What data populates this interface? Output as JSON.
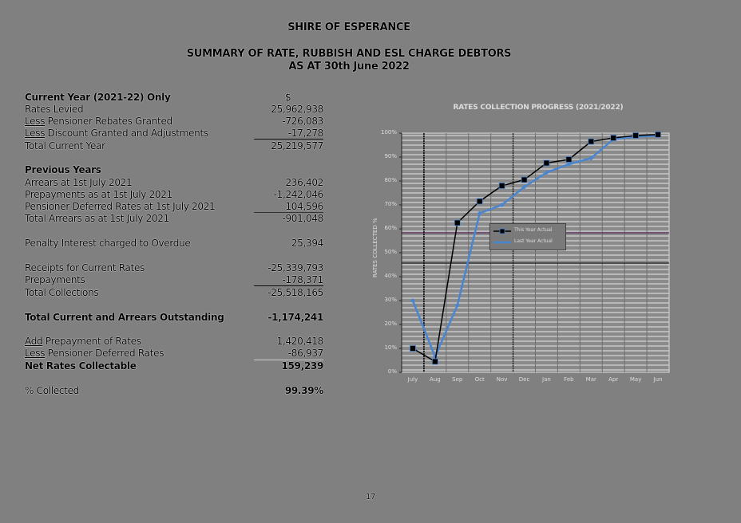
{
  "header": {
    "org": "SHIRE OF ESPERANCE",
    "title": "SUMMARY OF RATE, RUBBISH AND ESL CHARGE DEBTORS",
    "subtitle": "AS AT 30th June 2022"
  },
  "summary": {
    "current_year": {
      "heading": "Current Year (2021-22) Only",
      "currency": "$",
      "rows": [
        {
          "prefix": "",
          "label": "Rates Levied",
          "value": "25,962,938"
        },
        {
          "prefix": "Less",
          "label": " Pensioner Rebates Granted",
          "value": "-726,083"
        },
        {
          "prefix": "Less",
          "label": " Discount Granted and Adjustments",
          "value": "-17,278"
        }
      ],
      "total_label": "Total Current Year",
      "total_value": "25,219,577"
    },
    "previous_years": {
      "heading": "Previous Years",
      "rows": [
        {
          "label": "Arrears at 1st July 2021",
          "value": "236,402"
        },
        {
          "label": "Prepayments as at 1st July 2021",
          "value": "-1,242,046"
        },
        {
          "label": "Pensioner Deferred Rates at 1st July 2021",
          "value": "104,596"
        }
      ],
      "total_label": "Total Arrears as at 1st July 2021",
      "total_value": "-901,048"
    },
    "penalty": {
      "label": "Penalty Interest charged to Overdue",
      "value": "25,394"
    },
    "collections": {
      "rows": [
        {
          "label": "Receipts for Current Rates",
          "value": "-25,339,793"
        },
        {
          "label": "Prepayments",
          "value": "-178,371"
        }
      ],
      "total_label": "Total Collections",
      "total_value": "-25,518,165"
    },
    "outstanding": {
      "label": "Total Current and Arrears Outstanding",
      "value": "-1,174,241"
    },
    "adjustments": {
      "rows": [
        {
          "prefix": "Add",
          "label": " Prepayment of Rates",
          "value": "1,420,418"
        },
        {
          "prefix": "Less",
          "label": " Pensioner Deferred Rates",
          "value": "-86,937"
        }
      ],
      "total_label": "Net Rates Collectable",
      "total_value": "159,239"
    },
    "percent_collected": {
      "label": "% Collected",
      "value": "99.39%"
    }
  },
  "page_number": "17",
  "chart_data": {
    "type": "line",
    "title": "RATES COLLECTION PROGRESS (2021/2022)",
    "xlabel": "",
    "ylabel": "RATES COLLECTED %",
    "categories": [
      "July",
      "Aug",
      "Sep",
      "Oct",
      "Nov",
      "Dec",
      "Jan",
      "Feb",
      "Mar",
      "Apr",
      "May",
      "Jun"
    ],
    "yticks": [
      "0%",
      "10%",
      "20%",
      "30%",
      "40%",
      "50%",
      "60%",
      "70%",
      "80%",
      "90%",
      "100%"
    ],
    "ylim": [
      0,
      100
    ],
    "legend_position": "inside-left-middle",
    "series": [
      {
        "name": "This Year Actual",
        "color": "#000000",
        "marker": "square",
        "values": [
          10,
          4.5,
          62.5,
          71.5,
          78,
          80.5,
          87.5,
          89,
          96.5,
          98,
          99,
          99.4
        ]
      },
      {
        "name": "Last Year Actual",
        "color": "#4a86d0",
        "marker": "diamond",
        "values": [
          30,
          6.5,
          28,
          66.5,
          70,
          77.5,
          83.5,
          87,
          89.5,
          97.5,
          98.5,
          99
        ]
      }
    ]
  }
}
